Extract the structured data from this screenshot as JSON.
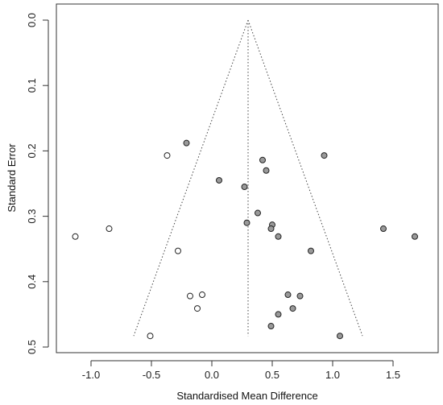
{
  "chart_data": {
    "type": "scatter",
    "title": "",
    "xlabel": "Standardised Mean Difference",
    "ylabel": "Standard Error",
    "xlim": [
      -1.25,
      1.95
    ],
    "ylim": [
      0.5,
      0.0
    ],
    "y_reversed": true,
    "grid": false,
    "x_ticks": [
      -1.0,
      -0.5,
      0.0,
      0.5,
      1.0,
      1.5
    ],
    "x_tick_labels": [
      "-1.0",
      "-0.5",
      "0.0",
      "0.5",
      "1.0",
      "1.5"
    ],
    "y_ticks": [
      0.0,
      0.1,
      0.2,
      0.3,
      0.4,
      0.5
    ],
    "y_tick_labels": [
      "0.0",
      "0.1",
      "0.2",
      "0.3",
      "0.4",
      "0.5"
    ],
    "summary_estimate": 0.3,
    "funnel_se_max": 0.483,
    "colors": {
      "observed_fill": "#9a9a9a",
      "imputed_fill": "#ffffff",
      "marker_stroke": "#222222",
      "funnel_line": "#444444"
    },
    "series": [
      {
        "points": [
          {
            "x": -0.21,
            "y": 0.188
          },
          {
            "x": 0.42,
            "y": 0.214
          },
          {
            "x": 0.45,
            "y": 0.23
          },
          {
            "x": 0.93,
            "y": 0.207
          },
          {
            "x": 0.06,
            "y": 0.245
          },
          {
            "x": 0.27,
            "y": 0.255
          },
          {
            "x": 0.38,
            "y": 0.295
          },
          {
            "x": 0.29,
            "y": 0.31
          },
          {
            "x": 0.5,
            "y": 0.313
          },
          {
            "x": 0.49,
            "y": 0.319
          },
          {
            "x": 0.55,
            "y": 0.331
          },
          {
            "x": 0.82,
            "y": 0.353
          },
          {
            "x": 1.42,
            "y": 0.319
          },
          {
            "x": 1.68,
            "y": 0.331
          },
          {
            "x": 0.63,
            "y": 0.42
          },
          {
            "x": 0.73,
            "y": 0.422
          },
          {
            "x": 0.67,
            "y": 0.441
          },
          {
            "x": 0.55,
            "y": 0.45
          },
          {
            "x": 0.49,
            "y": 0.468
          },
          {
            "x": 1.06,
            "y": 0.483
          }
        ]
      },
      {
        "points": [
          {
            "x": -0.37,
            "y": 0.207
          },
          {
            "x": -0.85,
            "y": 0.319
          },
          {
            "x": -1.13,
            "y": 0.331
          },
          {
            "x": -0.28,
            "y": 0.353
          },
          {
            "x": -0.08,
            "y": 0.42
          },
          {
            "x": -0.18,
            "y": 0.422
          },
          {
            "x": -0.12,
            "y": 0.441
          },
          {
            "x": -0.51,
            "y": 0.483
          }
        ]
      }
    ]
  }
}
